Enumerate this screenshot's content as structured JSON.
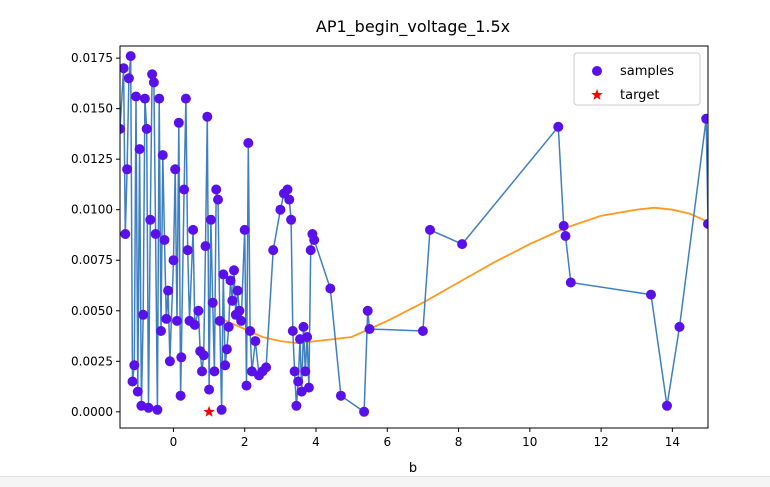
{
  "chart_data": {
    "type": "scatter",
    "title": "AP1_begin_voltage_1.5x",
    "xlabel": "b",
    "ylabel": "",
    "xlim": [
      -1.5,
      15.0
    ],
    "ylim": [
      -0.0008,
      0.0181
    ],
    "x_ticks": [
      0,
      2,
      4,
      6,
      8,
      10,
      12,
      14
    ],
    "x_tick_labels": [
      "0",
      "2",
      "4",
      "6",
      "8",
      "10",
      "12",
      "14"
    ],
    "y_ticks": [
      0.0,
      0.0025,
      0.005,
      0.0075,
      0.01,
      0.0125,
      0.015,
      0.0175
    ],
    "y_tick_labels": [
      "0.0000",
      "0.0025",
      "0.0050",
      "0.0075",
      "0.0100",
      "0.0125",
      "0.0150",
      "0.0175"
    ],
    "grid": false,
    "legend": {
      "position": "top-right",
      "entries": [
        "samples",
        "target"
      ]
    },
    "series": [
      {
        "name": "samples",
        "kind": "scatter-connected",
        "color": "#5a10e8",
        "line_color": "#3f7fbf",
        "points": [
          [
            -1.5,
            0.014
          ],
          [
            -1.4,
            0.017
          ],
          [
            -1.35,
            0.0088
          ],
          [
            -1.3,
            0.012
          ],
          [
            -1.25,
            0.0165
          ],
          [
            -1.2,
            0.0176
          ],
          [
            -1.15,
            0.0015
          ],
          [
            -1.1,
            0.0023
          ],
          [
            -1.05,
            0.0156
          ],
          [
            -1.0,
            0.001
          ],
          [
            -0.95,
            0.013
          ],
          [
            -0.9,
            0.0003
          ],
          [
            -0.85,
            0.0048
          ],
          [
            -0.8,
            0.0155
          ],
          [
            -0.75,
            0.014
          ],
          [
            -0.7,
            0.0002
          ],
          [
            -0.65,
            0.0095
          ],
          [
            -0.6,
            0.0167
          ],
          [
            -0.55,
            0.0163
          ],
          [
            -0.5,
            0.0088
          ],
          [
            -0.45,
            0.0001
          ],
          [
            -0.4,
            0.0155
          ],
          [
            -0.35,
            0.004
          ],
          [
            -0.3,
            0.0127
          ],
          [
            -0.25,
            0.0085
          ],
          [
            -0.2,
            0.0046
          ],
          [
            -0.15,
            0.006
          ],
          [
            -0.1,
            0.0025
          ],
          [
            0.0,
            0.0075
          ],
          [
            0.05,
            0.012
          ],
          [
            0.1,
            0.0045
          ],
          [
            0.15,
            0.0143
          ],
          [
            0.2,
            0.0008
          ],
          [
            0.22,
            0.0027
          ],
          [
            0.3,
            0.011
          ],
          [
            0.35,
            0.0155
          ],
          [
            0.4,
            0.008
          ],
          [
            0.45,
            0.0045
          ],
          [
            0.55,
            0.009
          ],
          [
            0.6,
            0.0043
          ],
          [
            0.7,
            0.005
          ],
          [
            0.75,
            0.003
          ],
          [
            0.8,
            0.002
          ],
          [
            0.85,
            0.0028
          ],
          [
            0.9,
            0.0082
          ],
          [
            0.95,
            0.0146
          ],
          [
            1.0,
            0.0011
          ],
          [
            1.05,
            0.0095
          ],
          [
            1.1,
            0.0054
          ],
          [
            1.15,
            0.002
          ],
          [
            1.2,
            0.011
          ],
          [
            1.25,
            0.0105
          ],
          [
            1.3,
            0.0045
          ],
          [
            1.35,
            0.0001
          ],
          [
            1.4,
            0.0068
          ],
          [
            1.45,
            0.0023
          ],
          [
            1.5,
            0.0031
          ],
          [
            1.55,
            0.0042
          ],
          [
            1.6,
            0.0065
          ],
          [
            1.65,
            0.0055
          ],
          [
            1.7,
            0.007
          ],
          [
            1.75,
            0.0048
          ],
          [
            1.8,
            0.006
          ],
          [
            1.85,
            0.005
          ],
          [
            1.9,
            0.0045
          ],
          [
            2.0,
            0.009
          ],
          [
            2.05,
            0.0013
          ],
          [
            2.1,
            0.0133
          ],
          [
            2.15,
            0.004
          ],
          [
            2.2,
            0.002
          ],
          [
            2.3,
            0.0035
          ],
          [
            2.4,
            0.0018
          ],
          [
            2.5,
            0.002
          ],
          [
            2.6,
            0.0022
          ],
          [
            2.8,
            0.008
          ],
          [
            3.0,
            0.01
          ],
          [
            3.1,
            0.0108
          ],
          [
            3.2,
            0.011
          ],
          [
            3.25,
            0.0105
          ],
          [
            3.3,
            0.0095
          ],
          [
            3.35,
            0.004
          ],
          [
            3.4,
            0.002
          ],
          [
            3.45,
            0.0003
          ],
          [
            3.5,
            0.0015
          ],
          [
            3.55,
            0.0036
          ],
          [
            3.6,
            0.001
          ],
          [
            3.65,
            0.0042
          ],
          [
            3.7,
            0.002
          ],
          [
            3.75,
            0.0037
          ],
          [
            3.8,
            0.0012
          ],
          [
            3.85,
            0.008
          ],
          [
            3.9,
            0.0088
          ],
          [
            3.95,
            0.0085
          ],
          [
            4.4,
            0.0061
          ],
          [
            4.7,
            0.0008
          ],
          [
            5.35,
            0.0
          ],
          [
            5.45,
            0.005
          ],
          [
            5.5,
            0.0041
          ],
          [
            7.0,
            0.004
          ],
          [
            7.2,
            0.009
          ],
          [
            8.1,
            0.0083
          ],
          [
            10.8,
            0.0141
          ],
          [
            10.95,
            0.0092
          ],
          [
            11.0,
            0.0087
          ],
          [
            11.15,
            0.0064
          ],
          [
            13.4,
            0.0058
          ],
          [
            13.85,
            0.0003
          ],
          [
            14.2,
            0.0042
          ],
          [
            14.95,
            0.0145
          ],
          [
            15.0,
            0.0093
          ]
        ]
      },
      {
        "name": "target",
        "kind": "marker",
        "color": "#ff0000",
        "points": [
          [
            1.0,
            0.0
          ]
        ]
      },
      {
        "kind": "curve",
        "color": "#ff9a1e",
        "points": [
          [
            1.35,
            0.0046
          ],
          [
            2.0,
            0.0041
          ],
          [
            2.5,
            0.0037
          ],
          [
            3.0,
            0.0035
          ],
          [
            3.5,
            0.0034
          ],
          [
            4.0,
            0.0035
          ],
          [
            5.0,
            0.0037
          ],
          [
            6.0,
            0.0045
          ],
          [
            7.0,
            0.0054
          ],
          [
            8.0,
            0.0064
          ],
          [
            9.0,
            0.0074
          ],
          [
            10.0,
            0.0083
          ],
          [
            11.0,
            0.0091
          ],
          [
            12.0,
            0.0097
          ],
          [
            13.0,
            0.01
          ],
          [
            13.5,
            0.0101
          ],
          [
            14.0,
            0.01
          ],
          [
            14.5,
            0.0098
          ],
          [
            15.0,
            0.0094
          ]
        ]
      }
    ]
  }
}
